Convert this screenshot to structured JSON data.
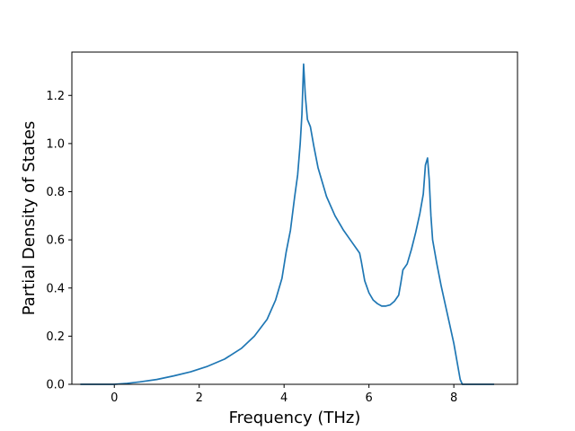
{
  "chart_data": {
    "type": "line",
    "title": "",
    "xlabel": "Frequency (THz)",
    "ylabel": "Partial Density of States",
    "xlim": [
      -1.0,
      9.5
    ],
    "ylim": [
      0.0,
      1.38
    ],
    "xticks": [
      0,
      2,
      4,
      6,
      8
    ],
    "yticks": [
      0.0,
      0.2,
      0.4,
      0.6,
      0.8,
      1.0,
      1.2
    ],
    "xtick_labels": [
      "0",
      "2",
      "4",
      "6",
      "8"
    ],
    "ytick_labels": [
      "0.0",
      "0.2",
      "0.4",
      "0.6",
      "0.8",
      "1.0",
      "1.2"
    ],
    "grid": false,
    "legend": "none",
    "line_color": "#1f77b4",
    "series": [
      {
        "x": [
          -0.8,
          -0.4,
          0.0,
          0.3,
          0.6,
          1.0,
          1.4,
          1.8,
          2.2,
          2.6,
          3.0,
          3.3,
          3.6,
          3.8,
          3.95,
          4.05,
          4.15,
          4.25,
          4.32,
          4.38,
          4.42,
          4.46,
          4.5,
          4.55,
          4.62,
          4.7,
          4.8,
          5.0,
          5.2,
          5.4,
          5.6,
          5.7,
          5.78,
          5.82,
          5.9,
          6.0,
          6.1,
          6.2,
          6.3,
          6.4,
          6.5,
          6.6,
          6.7,
          6.75,
          6.8,
          6.9,
          7.0,
          7.1,
          7.2,
          7.28,
          7.33,
          7.38,
          7.42,
          7.46,
          7.5,
          7.6,
          7.7,
          7.8,
          7.9,
          8.0,
          8.08,
          8.15,
          8.2,
          8.5,
          8.95
        ],
        "y": [
          0.0,
          0.0,
          0.0,
          0.004,
          0.01,
          0.02,
          0.035,
          0.052,
          0.075,
          0.105,
          0.15,
          0.2,
          0.27,
          0.35,
          0.44,
          0.55,
          0.64,
          0.78,
          0.87,
          1.0,
          1.12,
          1.33,
          1.2,
          1.1,
          1.07,
          0.99,
          0.9,
          0.78,
          0.7,
          0.64,
          0.59,
          0.565,
          0.545,
          0.51,
          0.43,
          0.38,
          0.35,
          0.335,
          0.325,
          0.325,
          0.33,
          0.345,
          0.37,
          0.42,
          0.475,
          0.5,
          0.56,
          0.63,
          0.71,
          0.79,
          0.91,
          0.94,
          0.85,
          0.7,
          0.6,
          0.5,
          0.41,
          0.33,
          0.25,
          0.17,
          0.09,
          0.02,
          0.0,
          0.0,
          0.0
        ]
      }
    ]
  }
}
